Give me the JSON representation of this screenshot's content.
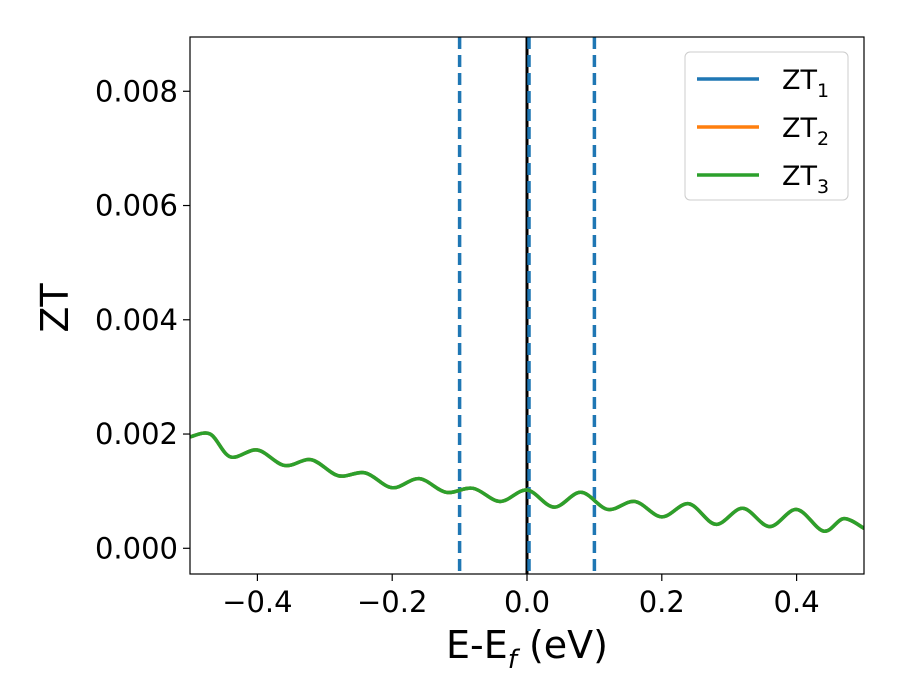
{
  "chart_data": {
    "type": "line",
    "xlabel": "E-E",
    "xlabel_sub": "f",
    "xlabel_unit": " (eV)",
    "ylabel": "ZT",
    "xlim": [
      -0.5,
      0.5
    ],
    "ylim": [
      -0.00045,
      0.00895
    ],
    "xticks": [
      -0.4,
      -0.2,
      0.0,
      0.2,
      0.4
    ],
    "xtick_labels": [
      "−0.4",
      "−0.2",
      "0.0",
      "0.2",
      "0.4"
    ],
    "yticks": [
      0.0,
      0.002,
      0.004,
      0.006,
      0.008
    ],
    "ytick_labels": [
      "0.000",
      "0.002",
      "0.004",
      "0.006",
      "0.008"
    ],
    "legend_position": "top-right",
    "grid": false,
    "vlines": [
      {
        "x": -0.1,
        "style": "dashed",
        "color": "#1f77b4"
      },
      {
        "x": 0.1,
        "style": "dashed",
        "color": "#1f77b4"
      },
      {
        "x": 0.0,
        "style": "solid",
        "color": "#000000"
      },
      {
        "x": 0.003,
        "style": "dashed",
        "color": "#1f77b4"
      }
    ],
    "series": [
      {
        "name": "ZT",
        "name_sub": "1",
        "color": "#1f77b4",
        "x": [
          -0.5,
          -0.47,
          -0.44,
          -0.4,
          -0.36,
          -0.32,
          -0.28,
          -0.24,
          -0.2,
          -0.16,
          -0.12,
          -0.08,
          -0.04,
          0.0,
          0.04,
          0.08,
          0.12,
          0.16,
          0.2,
          0.24,
          0.28,
          0.32,
          0.36,
          0.4,
          0.44,
          0.47,
          0.5
        ],
        "y": [
          0.00195,
          0.002,
          0.0016,
          0.00172,
          0.00145,
          0.00155,
          0.00127,
          0.00132,
          0.00106,
          0.00122,
          0.00098,
          0.00105,
          0.00082,
          0.00102,
          0.00072,
          0.00098,
          0.00068,
          0.00082,
          0.00055,
          0.00078,
          0.00042,
          0.0007,
          0.00038,
          0.00068,
          0.0003,
          0.00052,
          0.00035
        ]
      },
      {
        "name": "ZT",
        "name_sub": "2",
        "color": "#ff7f0e",
        "x": [
          -0.5,
          -0.47,
          -0.44,
          -0.4,
          -0.36,
          -0.32,
          -0.28,
          -0.24,
          -0.2,
          -0.16,
          -0.12,
          -0.08,
          -0.04,
          0.0,
          0.04,
          0.08,
          0.12,
          0.16,
          0.2,
          0.24,
          0.28,
          0.32,
          0.36,
          0.4,
          0.44,
          0.47,
          0.5
        ],
        "y": [
          0.00195,
          0.002,
          0.0016,
          0.00172,
          0.00145,
          0.00155,
          0.00127,
          0.00132,
          0.00106,
          0.00122,
          0.00098,
          0.00105,
          0.00082,
          0.00102,
          0.00072,
          0.00098,
          0.00068,
          0.00082,
          0.00055,
          0.00078,
          0.00042,
          0.0007,
          0.00038,
          0.00068,
          0.0003,
          0.00052,
          0.00035
        ]
      },
      {
        "name": "ZT",
        "name_sub": "3",
        "color": "#2ca02c",
        "x": [
          -0.5,
          -0.47,
          -0.44,
          -0.4,
          -0.36,
          -0.32,
          -0.28,
          -0.24,
          -0.2,
          -0.16,
          -0.12,
          -0.08,
          -0.04,
          0.0,
          0.04,
          0.08,
          0.12,
          0.16,
          0.2,
          0.24,
          0.28,
          0.32,
          0.36,
          0.4,
          0.44,
          0.47,
          0.5
        ],
        "y": [
          0.00195,
          0.002,
          0.0016,
          0.00172,
          0.00145,
          0.00155,
          0.00127,
          0.00132,
          0.00106,
          0.00122,
          0.00098,
          0.00105,
          0.00082,
          0.00102,
          0.00072,
          0.00098,
          0.00068,
          0.00082,
          0.00055,
          0.00078,
          0.00042,
          0.0007,
          0.00038,
          0.00068,
          0.0003,
          0.00052,
          0.00035
        ]
      }
    ]
  }
}
